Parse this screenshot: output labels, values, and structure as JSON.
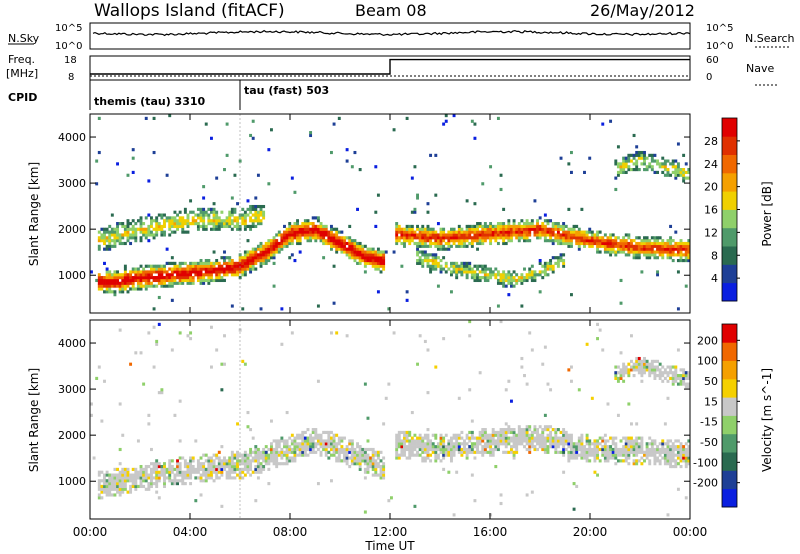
{
  "header": {
    "station": "Wallops Island (fitACF)",
    "beam": "Beam 08",
    "date": "26/May/2012"
  },
  "sky_panel": {
    "left_label": "N.Sky",
    "right_label": "N.Search",
    "left_ticks": [
      "10^5",
      "10^0"
    ],
    "right_ticks": [
      "10^5",
      "10^0"
    ]
  },
  "freq_panel": {
    "left_label_1": "Freq.",
    "left_label_2": "[MHz]",
    "right_label": "Nave",
    "left_ticks": [
      "18",
      "8"
    ],
    "right_ticks": [
      "60",
      "0"
    ],
    "step_hour": 12.0,
    "freq_level": [
      0.15,
      0.75
    ]
  },
  "cpid_panel": {
    "label": "CPID",
    "segments": [
      {
        "start_hour": 0,
        "text": "themis (tau) 3310"
      },
      {
        "start_hour": 6,
        "text": "tau (fast) 503"
      }
    ]
  },
  "chart_data": {
    "type": "heatmap",
    "xlabel": "Time UT",
    "x_ticks": [
      "00:00",
      "04:00",
      "08:00",
      "12:00",
      "16:00",
      "20:00",
      "00:00"
    ],
    "x_range_hours": [
      0,
      24
    ],
    "panels": [
      {
        "ylabel": "Slant Range [km]",
        "y_ticks": [
          "1000",
          "2000",
          "3000",
          "4000"
        ],
        "y_range_km": [
          180,
          4500
        ],
        "colorbar": {
          "label": "Power [dB]",
          "ticks": [
            "4",
            "8",
            "12",
            "16",
            "20",
            "24",
            "28"
          ],
          "colors": [
            "#0a1fe0",
            "#1e3f96",
            "#2a6a50",
            "#4f9a6a",
            "#8fd06a",
            "#f0d000",
            "#f5a000",
            "#f06800",
            "#e03000",
            "#e00000"
          ]
        },
        "bands": [
          {
            "points": [
              [
                0.3,
                870
              ],
              [
                1,
                850
              ],
              [
                2,
                950
              ],
              [
                3,
                1000
              ],
              [
                4,
                1050
              ],
              [
                5,
                1100
              ],
              [
                6,
                1200
              ],
              [
                7,
                1500
              ],
              [
                8,
                1900
              ],
              [
                9,
                2000
              ],
              [
                10,
                1700
              ],
              [
                11,
                1400
              ],
              [
                11.8,
                1300
              ]
            ],
            "width": 260,
            "level": 0.85
          },
          {
            "points": [
              [
                12.2,
                1900
              ],
              [
                14,
                1800
              ],
              [
                16,
                1900
              ],
              [
                18,
                2000
              ],
              [
                20,
                1750
              ],
              [
                22,
                1600
              ],
              [
                24,
                1550
              ]
            ],
            "width": 250,
            "level": 0.7
          },
          {
            "points": [
              [
                13,
                1400
              ],
              [
                15,
                1100
              ],
              [
                17,
                900
              ],
              [
                18,
                1100
              ],
              [
                19,
                1300
              ]
            ],
            "width": 180,
            "level": 0.35
          },
          {
            "points": [
              [
                0.3,
                1750
              ],
              [
                2,
                2000
              ],
              [
                4,
                2200
              ],
              [
                6,
                2200
              ],
              [
                7,
                2300
              ]
            ],
            "width": 260,
            "level": 0.35
          },
          {
            "points": [
              [
                21,
                3300
              ],
              [
                22,
                3500
              ],
              [
                24,
                3200
              ]
            ],
            "width": 200,
            "level": 0.3
          }
        ]
      },
      {
        "ylabel": "Slant Range [km]",
        "y_ticks": [
          "1000",
          "2000",
          "3000",
          "4000"
        ],
        "y_range_km": [
          180,
          4500
        ],
        "colorbar": {
          "label": "Velocity [m s^-1]",
          "ticks": [
            "200",
            "100",
            "50",
            "15",
            "-15",
            "-50",
            "-100",
            "-200"
          ],
          "colors": [
            "#0a1fe0",
            "#1e3f96",
            "#2a6a50",
            "#4f9a6a",
            "#8fd06a",
            "#c8c8c8",
            "#f5d000",
            "#f5a000",
            "#f06800",
            "#e00000"
          ]
        },
        "bands": [
          {
            "points": [
              [
                0.3,
                900
              ],
              [
                2,
                1100
              ],
              [
                4,
                1250
              ],
              [
                6,
                1350
              ],
              [
                8,
                1700
              ],
              [
                9,
                1900
              ],
              [
                10,
                1700
              ],
              [
                11.8,
                1300
              ]
            ],
            "width": 300,
            "level": 0.5
          },
          {
            "points": [
              [
                12.2,
                1800
              ],
              [
                14,
                1700
              ],
              [
                16,
                1850
              ],
              [
                18,
                1950
              ],
              [
                20,
                1700
              ],
              [
                24,
                1600
              ]
            ],
            "width": 300,
            "level": 0.5
          },
          {
            "points": [
              [
                21,
                3300
              ],
              [
                22,
                3500
              ],
              [
                24,
                3200
              ]
            ],
            "width": 200,
            "level": 0.5
          }
        ]
      }
    ]
  }
}
